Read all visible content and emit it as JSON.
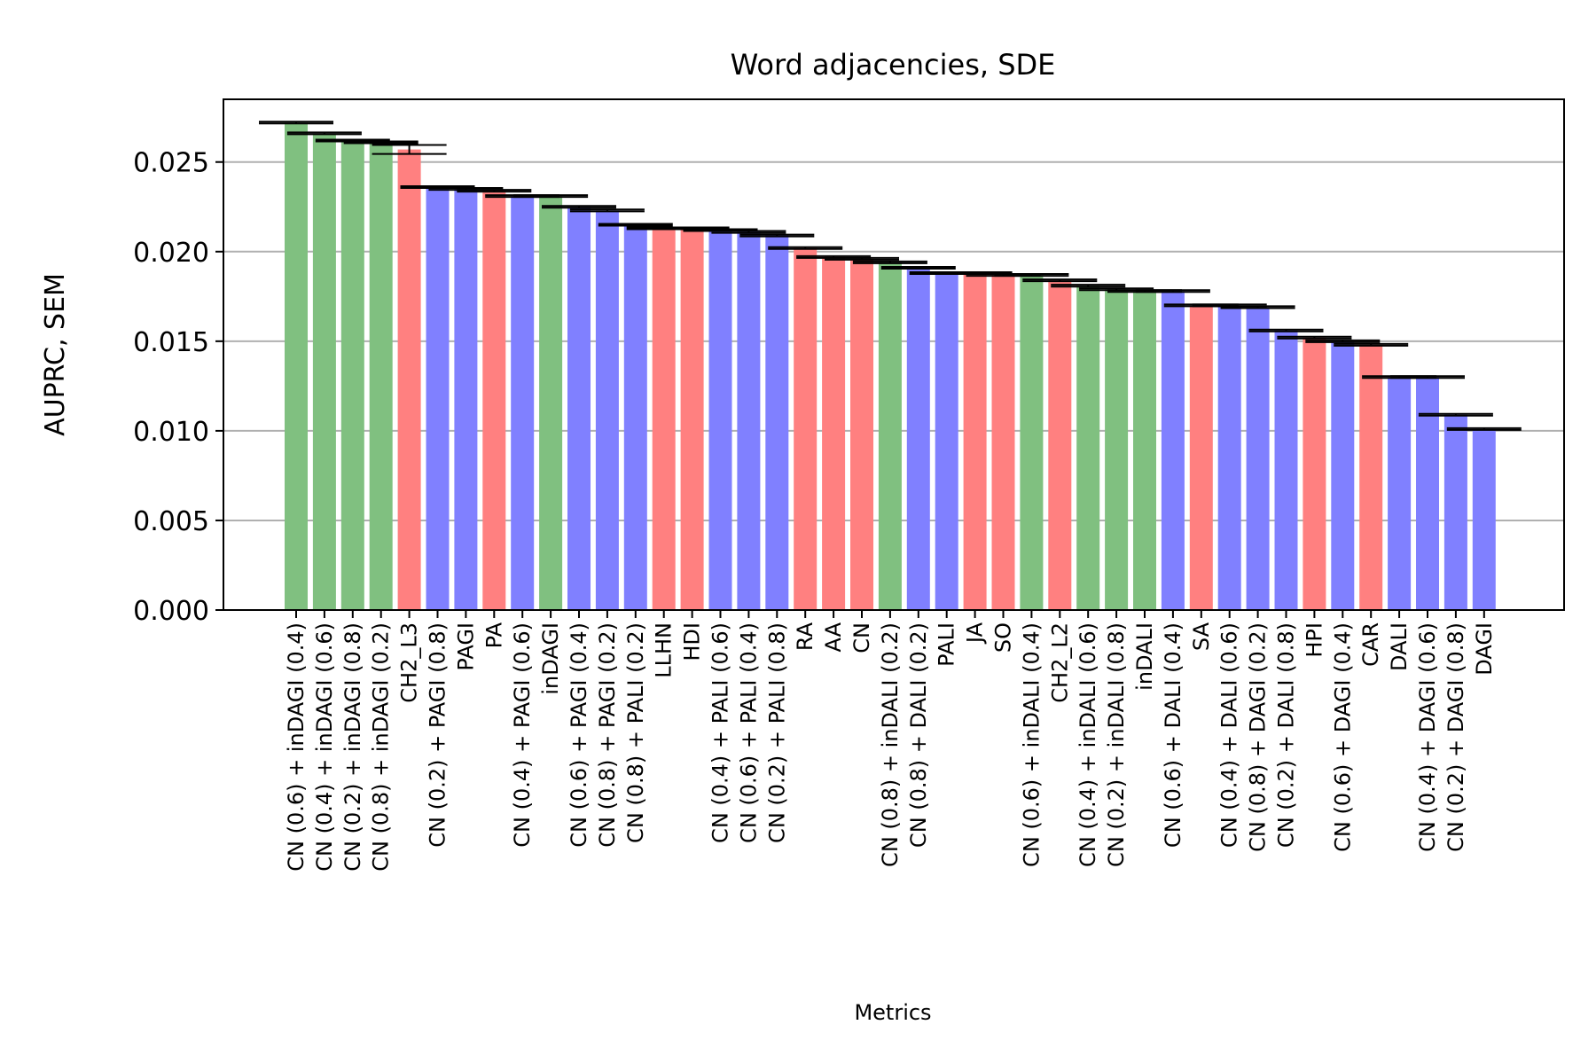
{
  "chart_data": {
    "type": "bar",
    "title": "Word adjacencies, SDE",
    "xlabel": "Metrics",
    "ylabel": "AUPRC, SEM",
    "ylim": [
      0,
      0.0285
    ],
    "yticks": [
      0.0,
      0.005,
      0.01,
      0.015,
      0.02,
      0.025
    ],
    "ytick_labels": [
      "0.000",
      "0.005",
      "0.010",
      "0.015",
      "0.020",
      "0.025"
    ],
    "grid": "y",
    "colors": {
      "green": "#80c080",
      "red": "#ff8080",
      "blue": "#8080ff"
    },
    "categories": [
      "CN (0.6) + inDAGI (0.4)",
      "CN (0.4) + inDAGI (0.6)",
      "CN (0.2) + inDAGI (0.8)",
      "CN (0.8) + inDAGI (0.2)",
      "CH2_L3",
      "CN (0.2) + PAGI (0.8)",
      "PAGI",
      "PA",
      "CN (0.4) + PAGI (0.6)",
      "inDAGI",
      "CN (0.6) + PAGI (0.4)",
      "CN (0.8) + PAGI (0.2)",
      "CN (0.8) + PALI (0.2)",
      "LLHN",
      "HDI",
      "CN (0.4) + PALI (0.6)",
      "CN (0.6) + PALI (0.4)",
      "CN (0.2) + PALI (0.8)",
      "RA",
      "AA",
      "CN",
      "CN (0.8) + inDALI (0.2)",
      "CN (0.8) + DALI (0.2)",
      "PALI",
      "JA",
      "SO",
      "CN (0.6) + inDALI (0.4)",
      "CH2_L2",
      "CN (0.4) + inDALI (0.6)",
      "CN (0.2) + inDALI (0.8)",
      "inDALI",
      "CN (0.6) + DALI (0.4)",
      "SA",
      "CN (0.4) + DALI (0.6)",
      "CN (0.8) + DAGI (0.2)",
      "CN (0.2) + DALI (0.8)",
      "HPI",
      "CN (0.6) + DAGI (0.4)",
      "CAR",
      "DALI",
      "CN (0.4) + DAGI (0.6)",
      "CN (0.2) + DAGI (0.8)",
      "DAGI"
    ],
    "values": [
      0.0272,
      0.0266,
      0.0262,
      0.0261,
      0.0257,
      0.0236,
      0.0235,
      0.0234,
      0.0231,
      0.0231,
      0.0225,
      0.0223,
      0.0215,
      0.0213,
      0.0213,
      0.0212,
      0.0211,
      0.0209,
      0.0202,
      0.0197,
      0.0196,
      0.0194,
      0.0191,
      0.0188,
      0.0188,
      0.0187,
      0.0187,
      0.0184,
      0.0181,
      0.0179,
      0.0178,
      0.0178,
      0.017,
      0.017,
      0.0169,
      0.0156,
      0.0152,
      0.015,
      0.0148,
      0.013,
      0.013,
      0.0109,
      0.0101
    ],
    "errors": [
      5e-05,
      5e-05,
      5e-05,
      5e-05,
      0.00025,
      5e-05,
      5e-05,
      5e-05,
      5e-05,
      5e-05,
      5e-05,
      5e-05,
      5e-05,
      5e-05,
      5e-05,
      5e-05,
      5e-05,
      5e-05,
      5e-05,
      5e-05,
      5e-05,
      5e-05,
      5e-05,
      5e-05,
      5e-05,
      5e-05,
      5e-05,
      5e-05,
      5e-05,
      5e-05,
      5e-05,
      5e-05,
      5e-05,
      5e-05,
      5e-05,
      5e-05,
      5e-05,
      5e-05,
      5e-05,
      5e-05,
      5e-05,
      5e-05,
      5e-05
    ],
    "bar_colors": [
      "green",
      "green",
      "green",
      "green",
      "red",
      "blue",
      "blue",
      "red",
      "blue",
      "green",
      "blue",
      "blue",
      "blue",
      "red",
      "red",
      "blue",
      "blue",
      "blue",
      "red",
      "red",
      "red",
      "green",
      "blue",
      "blue",
      "red",
      "red",
      "green",
      "red",
      "green",
      "green",
      "green",
      "blue",
      "red",
      "blue",
      "blue",
      "blue",
      "red",
      "blue",
      "red",
      "blue",
      "blue",
      "blue",
      "blue"
    ]
  }
}
